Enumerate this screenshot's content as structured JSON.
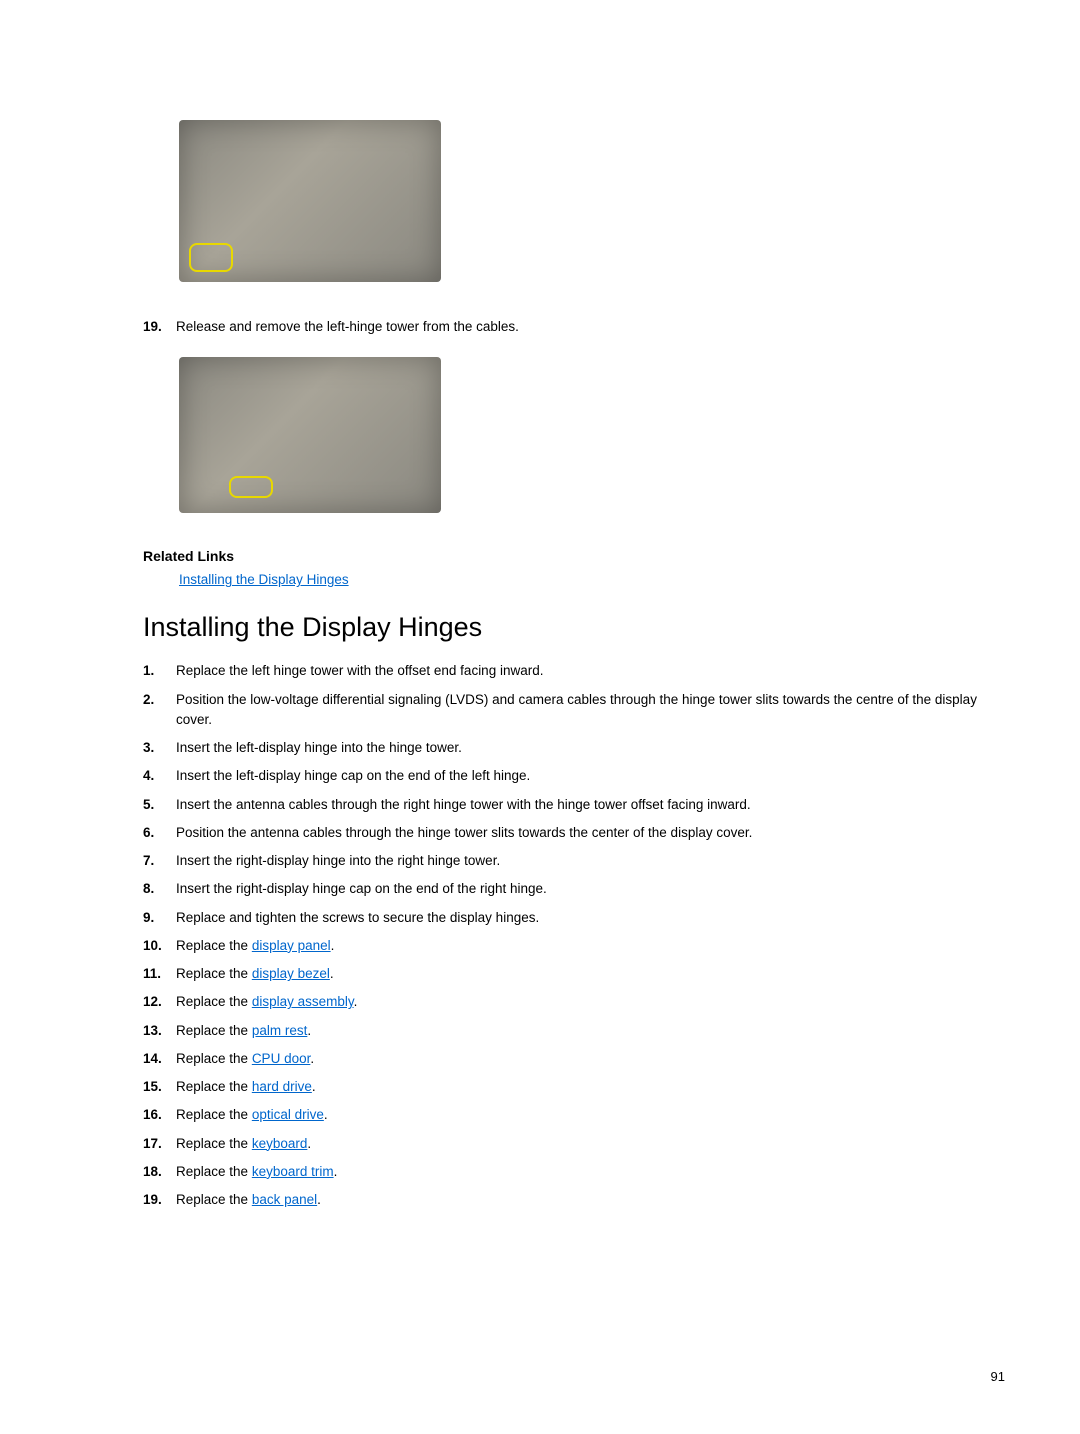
{
  "figures": {
    "fig1_alt": "Display assembly with left-hinge tower highlighted",
    "fig2_alt": "Display assembly with hinge tower cable release highlighted"
  },
  "preStep": {
    "num": "19.",
    "text": "Release and remove the left-hinge tower from the cables."
  },
  "relatedLinks": {
    "heading": "Related Links",
    "items": [
      {
        "label": "Installing the Display Hinges"
      }
    ]
  },
  "section": {
    "heading": "Installing the Display Hinges",
    "steps": [
      {
        "num": "1.",
        "text": "Replace the left hinge tower with the offset end facing inward."
      },
      {
        "num": "2.",
        "text": "Position the low-voltage differential signaling (LVDS) and camera cables through the hinge tower slits towards the centre of the display cover."
      },
      {
        "num": "3.",
        "text": "Insert the left-display hinge into the hinge tower."
      },
      {
        "num": "4.",
        "text": "Insert the left-display hinge cap on the end of the left hinge."
      },
      {
        "num": "5.",
        "text": "Insert the antenna cables through the right hinge tower with the hinge tower offset facing inward."
      },
      {
        "num": "6.",
        "text": "Position the antenna cables through the hinge tower slits towards the center of the display cover."
      },
      {
        "num": "7.",
        "text": "Insert the right-display hinge into the right hinge tower."
      },
      {
        "num": "8.",
        "text": "Insert the right-display hinge cap on the end of the right hinge."
      },
      {
        "num": "9.",
        "text": "Replace and tighten the screws to secure the display hinges."
      },
      {
        "num": "10.",
        "prefix": "Replace the ",
        "link": "display panel",
        "suffix": "."
      },
      {
        "num": "11.",
        "prefix": "Replace the ",
        "link": "display bezel",
        "suffix": "."
      },
      {
        "num": "12.",
        "prefix": "Replace the ",
        "link": "display assembly",
        "suffix": "."
      },
      {
        "num": "13.",
        "prefix": "Replace the ",
        "link": "palm rest",
        "suffix": "."
      },
      {
        "num": "14.",
        "prefix": "Replace the ",
        "link": "CPU door",
        "suffix": "."
      },
      {
        "num": "15.",
        "prefix": "Replace the ",
        "link": "hard drive",
        "suffix": "."
      },
      {
        "num": "16.",
        "prefix": "Replace the ",
        "link": "optical drive",
        "suffix": "."
      },
      {
        "num": "17.",
        "prefix": "Replace the ",
        "link": "keyboard",
        "suffix": "."
      },
      {
        "num": "18.",
        "prefix": "Replace the ",
        "link": "keyboard trim",
        "suffix": "."
      },
      {
        "num": "19.",
        "prefix": "Replace the ",
        "link": "back panel",
        "suffix": "."
      }
    ]
  },
  "pageNumber": "91"
}
